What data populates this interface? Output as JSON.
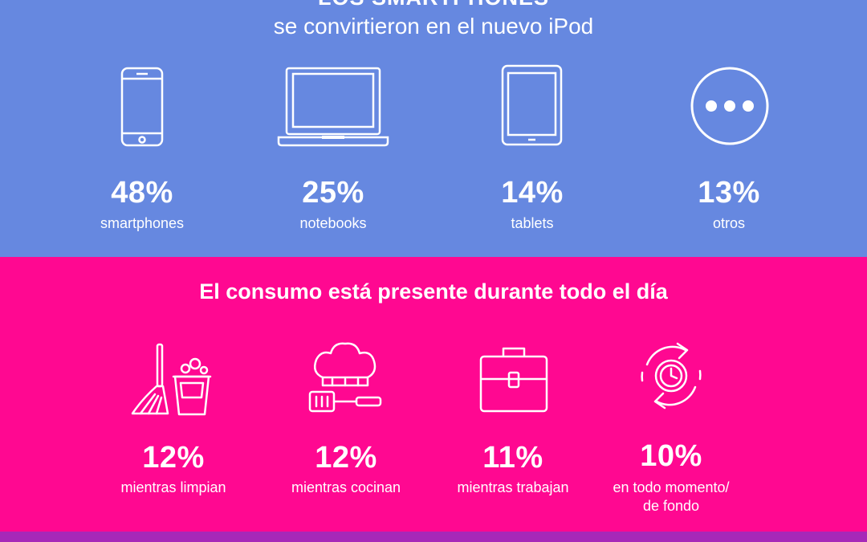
{
  "devices": {
    "title": "LOS SMARTPHONES",
    "subtitle": "se convirtieron en el nuevo iPod",
    "items": [
      {
        "icon": "smartphone-icon",
        "percent": "48%",
        "label": "smartphones"
      },
      {
        "icon": "laptop-icon",
        "percent": "25%",
        "label": "notebooks"
      },
      {
        "icon": "tablet-icon",
        "percent": "14%",
        "label": "tablets"
      },
      {
        "icon": "more-icon",
        "percent": "13%",
        "label": "otros"
      }
    ]
  },
  "moments": {
    "title": "El consumo está presente durante todo el día",
    "items": [
      {
        "icon": "cleaning-icon",
        "percent": "12%",
        "label": "mientras limpian"
      },
      {
        "icon": "chef-icon",
        "percent": "12%",
        "label": "mientras cocinan"
      },
      {
        "icon": "briefcase-icon",
        "percent": "11%",
        "label": "mientras trabajan"
      },
      {
        "icon": "clock-cycle-icon",
        "percent": "10%",
        "label_line1": "en todo momento/",
        "label_line2": "de fondo"
      }
    ]
  },
  "colors": {
    "top_background": "#6688e0",
    "middle_background": "#ff0891",
    "bottom_strip": "#a628b8",
    "text": "#ffffff"
  }
}
